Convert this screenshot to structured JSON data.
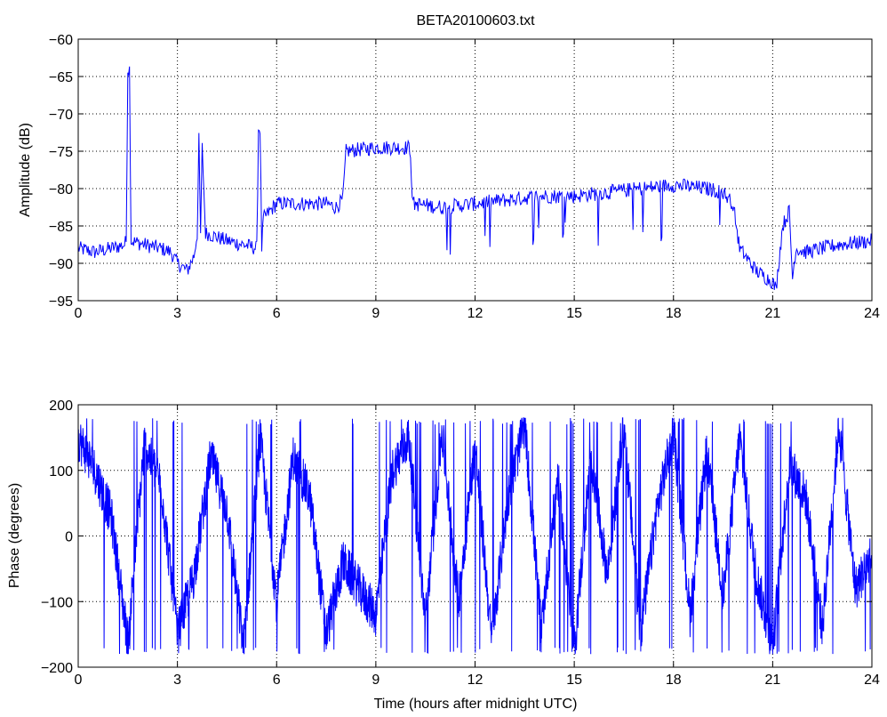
{
  "chart_data": [
    {
      "type": "line",
      "title": "BETA20100603.txt",
      "xlabel": "",
      "ylabel": "Amplitude (dB)",
      "xlim": [
        0,
        24
      ],
      "ylim": [
        -95,
        -60
      ],
      "xticks": [
        0,
        3,
        6,
        9,
        12,
        15,
        18,
        21,
        24
      ],
      "yticks": [
        -95,
        -90,
        -85,
        -80,
        -75,
        -70,
        -65,
        -60
      ],
      "xtick_labels": [
        "0",
        "3",
        "6",
        "9",
        "12",
        "15",
        "18",
        "21",
        "24"
      ],
      "ytick_labels": [
        "−95",
        "−90",
        "−85",
        "−80",
        "−75",
        "−70",
        "−65",
        "−60"
      ],
      "grid": true,
      "series": [
        {
          "color": "#0000ff",
          "noise": 1.0,
          "x": [
            0,
            0.5,
            1.0,
            1.4,
            1.45,
            1.5,
            1.55,
            1.6,
            2.0,
            2.5,
            2.8,
            3.0,
            3.3,
            3.5,
            3.6,
            3.65,
            3.7,
            3.75,
            3.85,
            3.9,
            4.5,
            5.0,
            5.4,
            5.45,
            5.5,
            5.55,
            5.6,
            6.0,
            6.5,
            7.0,
            7.2,
            7.5,
            7.8,
            8.0,
            8.1,
            9.0,
            10.0,
            10.05,
            10.1,
            11.0,
            12.0,
            13.0,
            14.0,
            15.0,
            16.0,
            17.0,
            18.0,
            19.0,
            19.5,
            19.8,
            20.0,
            20.5,
            21.0,
            21.1,
            21.3,
            21.5,
            21.6,
            21.7,
            22.0,
            23.0,
            24.0
          ],
          "y": [
            -88,
            -88.5,
            -88,
            -87.5,
            -87,
            -64,
            -64,
            -87,
            -87.5,
            -88,
            -88.5,
            -90,
            -91,
            -89,
            -86,
            -73.5,
            -86,
            -74.5,
            -86,
            -86,
            -87,
            -87.5,
            -88,
            -72,
            -72,
            -88,
            -84,
            -82,
            -82,
            -82,
            -82,
            -82,
            -82.5,
            -81.5,
            -75,
            -74.5,
            -74.5,
            -75,
            -82,
            -82.5,
            -82,
            -81.5,
            -81,
            -81,
            -80.5,
            -80,
            -79.5,
            -80,
            -80.5,
            -82,
            -88,
            -91,
            -92.5,
            -93.5,
            -85,
            -83,
            -92,
            -88,
            -88.5,
            -87.5,
            -87
          ]
        }
      ]
    },
    {
      "type": "line",
      "title": "",
      "xlabel": "Time (hours after midnight UTC)",
      "ylabel": "Phase (degrees)",
      "xlim": [
        0,
        24
      ],
      "ylim": [
        -200,
        200
      ],
      "xticks": [
        0,
        3,
        6,
        9,
        12,
        15,
        18,
        21,
        24
      ],
      "yticks": [
        -200,
        -100,
        0,
        100,
        200
      ],
      "xtick_labels": [
        "0",
        "3",
        "6",
        "9",
        "12",
        "15",
        "18",
        "21",
        "24"
      ],
      "ytick_labels": [
        "−200",
        "−100",
        "0",
        "100",
        "200"
      ],
      "grid": true,
      "series": [
        {
          "color": "#0000ff",
          "wrap": [
            -180,
            180
          ],
          "x": [
            0,
            0.5,
            1.0,
            1.5,
            2.0,
            2.5,
            3.0,
            3.5,
            4.0,
            4.5,
            5.0,
            5.5,
            6.0,
            6.5,
            7.0,
            7.5,
            8.0,
            8.5,
            9.0,
            9.5,
            10.0,
            10.5,
            11.0,
            11.5,
            12.0,
            12.5,
            13.0,
            13.5,
            14.0,
            14.5,
            15.0,
            15.5,
            16.0,
            16.5,
            17.0,
            17.5,
            18.0,
            18.5,
            19.0,
            19.5,
            20.0,
            20.5,
            21.0,
            21.5,
            22.0,
            22.5,
            23.0,
            23.5,
            24.0
          ],
          "y": [
            150,
            100,
            30,
            -160,
            140,
            80,
            -150,
            -60,
            120,
            40,
            -170,
            150,
            -100,
            120,
            60,
            -150,
            -40,
            -80,
            -120,
            100,
            150,
            -130,
            160,
            -100,
            140,
            -160,
            60,
            170,
            -140,
            90,
            -170,
            120,
            -60,
            170,
            -150,
            40,
            160,
            -120,
            130,
            -90,
            150,
            -60,
            -170,
            110,
            60,
            -140,
            170,
            -80,
            -30
          ]
        }
      ]
    }
  ]
}
